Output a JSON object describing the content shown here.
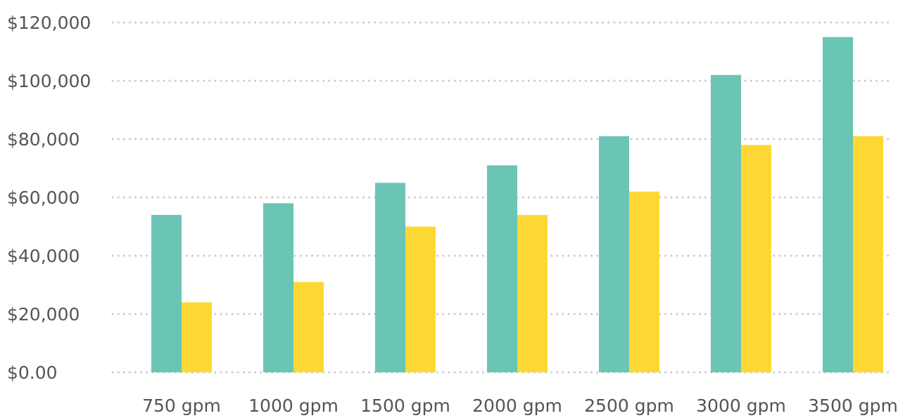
{
  "chart_data": {
    "type": "bar",
    "title": "",
    "xlabel": "",
    "ylabel": "",
    "categories": [
      "750 gpm",
      "1000 gpm",
      "1500 gpm",
      "2000 gpm",
      "2500 gpm",
      "3000 gpm",
      "3500 gpm"
    ],
    "series": [
      {
        "color": "#6ac5b5",
        "values": [
          54000,
          58000,
          65000,
          71000,
          81000,
          102000,
          115000
        ]
      },
      {
        "color": "#fdd835",
        "values": [
          24000,
          31000,
          50000,
          54000,
          62000,
          78000,
          81000
        ]
      }
    ],
    "ylim": [
      0,
      120000
    ],
    "y_ticks": [
      {
        "value": 0,
        "label": "$0.00"
      },
      {
        "value": 20000,
        "label": "$20,000"
      },
      {
        "value": 40000,
        "label": "$40,000"
      },
      {
        "value": 60000,
        "label": "$60,000"
      },
      {
        "value": 80000,
        "label": "$80,000"
      },
      {
        "value": 100000,
        "label": "$100,000"
      },
      {
        "value": 120000,
        "label": "$120,000"
      }
    ],
    "grid": true,
    "grid_style": "dotted",
    "grid_color": "#cccccc",
    "label_color": "#555555",
    "legend": "none"
  }
}
